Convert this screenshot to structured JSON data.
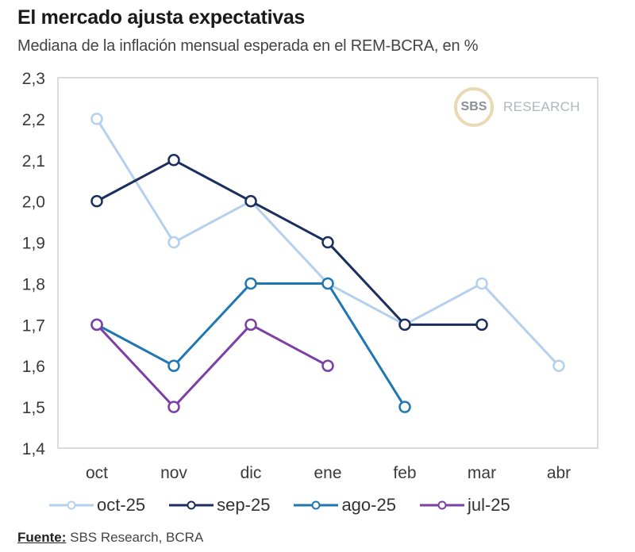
{
  "header": {
    "title": "El mercado ajusta expectativas",
    "subtitle": "Mediana de la inflación mensual esperada en el REM-BCRA, en %"
  },
  "watermark": {
    "mark": "SBS",
    "text": "RESEARCH"
  },
  "source": {
    "label": "Fuente:",
    "text": " SBS Research, BCRA"
  },
  "chart_data": {
    "type": "line",
    "title": "El mercado ajusta expectativas",
    "subtitle": "Mediana de la inflación mensual esperada en el REM-BCRA, en %",
    "xlabel": "",
    "ylabel": "",
    "categories": [
      "oct",
      "nov",
      "dic",
      "ene",
      "feb",
      "mar",
      "abr"
    ],
    "ylim": [
      1.4,
      2.3
    ],
    "yticks": [
      1.4,
      1.5,
      1.6,
      1.7,
      1.8,
      1.9,
      2.0,
      2.1,
      2.2,
      2.3
    ],
    "ytick_labels": [
      "1,4",
      "1,5",
      "1,6",
      "1,7",
      "1,8",
      "1,9",
      "2,0",
      "2,1",
      "2,2",
      "2,3"
    ],
    "grid": false,
    "legend_position": "bottom",
    "series": [
      {
        "name": "oct-25",
        "color": "#b4d0ec",
        "values": [
          2.2,
          1.9,
          2.0,
          1.8,
          1.7,
          1.8,
          1.6
        ]
      },
      {
        "name": "sep-25",
        "color": "#1b2f5e",
        "values": [
          2.0,
          2.1,
          2.0,
          1.9,
          1.7,
          1.7,
          null
        ]
      },
      {
        "name": "ago-25",
        "color": "#1f77b4",
        "values": [
          1.7,
          1.6,
          1.8,
          1.8,
          1.5,
          null,
          null
        ]
      },
      {
        "name": "jul-25",
        "color": "#7b3fa6",
        "values": [
          1.7,
          1.5,
          1.7,
          1.6,
          null,
          null,
          null
        ]
      }
    ]
  }
}
